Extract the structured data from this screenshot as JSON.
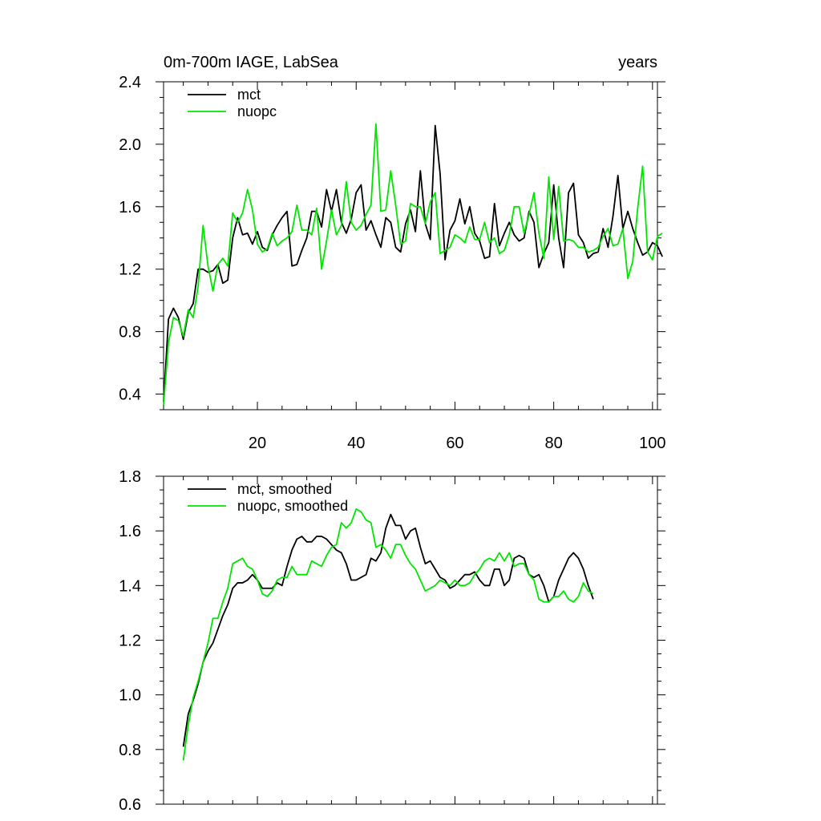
{
  "figure": {
    "title_left": "0m-700m IAGE, LabSea",
    "title_right": "years"
  },
  "chart_data": [
    {
      "type": "line",
      "title": "0m-700m IAGE, LabSea",
      "xlabel": "",
      "ylabel": "",
      "xlim": [
        1,
        101
      ],
      "ylim": [
        0.3,
        2.4
      ],
      "xticks": [
        20,
        40,
        60,
        80,
        100
      ],
      "yticks": [
        0.4,
        0.8,
        1.2,
        1.6,
        2.0,
        2.4
      ],
      "ytick_labels": [
        "0.4",
        "0.8",
        "1.2",
        "1.6",
        "2.0",
        "2.4"
      ],
      "grid": false,
      "legend_position": "top-left",
      "colors": {
        "mct": "#000000",
        "nuopc": "#00e600"
      },
      "series": [
        {
          "name": "mct",
          "x_start": 1,
          "values": [
            0.35,
            0.88,
            0.95,
            0.89,
            0.75,
            0.92,
            0.98,
            1.2,
            1.2,
            1.18,
            1.19,
            1.23,
            1.11,
            1.13,
            1.4,
            1.53,
            1.42,
            1.43,
            1.36,
            1.44,
            1.34,
            1.32,
            1.42,
            1.48,
            1.53,
            1.57,
            1.22,
            1.23,
            1.32,
            1.4,
            1.57,
            1.57,
            1.47,
            1.71,
            1.57,
            1.71,
            1.5,
            1.43,
            1.52,
            1.69,
            1.74,
            1.45,
            1.51,
            1.42,
            1.34,
            1.53,
            1.5,
            1.34,
            1.31,
            1.49,
            1.58,
            1.44,
            1.83,
            1.49,
            1.39,
            2.12,
            1.81,
            1.26,
            1.45,
            1.51,
            1.65,
            1.49,
            1.6,
            1.43,
            1.38,
            1.27,
            1.28,
            1.62,
            1.35,
            1.43,
            1.5,
            1.42,
            1.38,
            1.4,
            1.57,
            1.5,
            1.21,
            1.3,
            1.37,
            1.74,
            1.4,
            1.21,
            1.69,
            1.75,
            1.42,
            1.37,
            1.27,
            1.3,
            1.31,
            1.46,
            1.34,
            1.54,
            1.8,
            1.46,
            1.57,
            1.46,
            1.37,
            1.29,
            1.31,
            1.37,
            1.35,
            1.28
          ]
        },
        {
          "name": "nuopc",
          "x_start": 1,
          "values": [
            0.33,
            0.73,
            0.89,
            0.87,
            0.77,
            0.94,
            0.89,
            1.09,
            1.48,
            1.22,
            1.06,
            1.23,
            1.27,
            1.22,
            1.56,
            1.5,
            1.56,
            1.71,
            1.58,
            1.36,
            1.31,
            1.33,
            1.43,
            1.35,
            1.38,
            1.4,
            1.44,
            1.61,
            1.45,
            1.45,
            1.42,
            1.59,
            1.2,
            1.38,
            1.58,
            1.42,
            1.48,
            1.76,
            1.5,
            1.45,
            1.48,
            1.55,
            1.61,
            2.13,
            1.57,
            1.58,
            1.83,
            1.61,
            1.36,
            1.38,
            1.62,
            1.6,
            1.6,
            1.49,
            1.63,
            1.69,
            1.3,
            1.32,
            1.34,
            1.42,
            1.4,
            1.37,
            1.47,
            1.39,
            1.39,
            1.5,
            1.37,
            1.4,
            1.3,
            1.32,
            1.42,
            1.6,
            1.6,
            1.43,
            1.55,
            1.69,
            1.43,
            1.27,
            1.79,
            1.39,
            1.73,
            1.38,
            1.39,
            1.38,
            1.34,
            1.34,
            1.31,
            1.32,
            1.34,
            1.41,
            1.46,
            1.35,
            1.36,
            1.46,
            1.14,
            1.25,
            1.59,
            1.86,
            1.31,
            1.26,
            1.41,
            1.43
          ]
        }
      ]
    },
    {
      "type": "line",
      "title": "",
      "xlabel": "",
      "ylabel": "",
      "xlim": [
        1,
        101
      ],
      "ylim": [
        0.6,
        1.8
      ],
      "xticks": [
        20,
        40,
        60,
        80,
        100
      ],
      "yticks": [
        0.6,
        0.8,
        1.0,
        1.2,
        1.4,
        1.6,
        1.8
      ],
      "ytick_labels": [
        "0.6",
        "0.8",
        "1.0",
        "1.2",
        "1.4",
        "1.6",
        "1.8"
      ],
      "grid": false,
      "legend_position": "top-left",
      "colors": {
        "mct": "#000000",
        "nuopc": "#00e600"
      },
      "series": [
        {
          "name": "mct, smoothed",
          "x_start": 5,
          "values": [
            0.81,
            0.93,
            0.98,
            1.04,
            1.12,
            1.16,
            1.19,
            1.24,
            1.29,
            1.33,
            1.39,
            1.41,
            1.41,
            1.42,
            1.44,
            1.42,
            1.39,
            1.39,
            1.39,
            1.41,
            1.4,
            1.47,
            1.53,
            1.57,
            1.58,
            1.56,
            1.56,
            1.58,
            1.58,
            1.57,
            1.55,
            1.53,
            1.52,
            1.48,
            1.42,
            1.42,
            1.43,
            1.44,
            1.5,
            1.49,
            1.52,
            1.61,
            1.66,
            1.62,
            1.62,
            1.57,
            1.6,
            1.61,
            1.54,
            1.48,
            1.49,
            1.46,
            1.43,
            1.42,
            1.39,
            1.4,
            1.42,
            1.44,
            1.44,
            1.45,
            1.42,
            1.4,
            1.4,
            1.46,
            1.46,
            1.4,
            1.42,
            1.5,
            1.51,
            1.5,
            1.44,
            1.43,
            1.44,
            1.4,
            1.34,
            1.36,
            1.42,
            1.46,
            1.5,
            1.52,
            1.5,
            1.46,
            1.4,
            1.35
          ]
        },
        {
          "name": "nuopc, smoothed",
          "x_start": 5,
          "values": [
            0.76,
            0.89,
            0.99,
            1.05,
            1.12,
            1.19,
            1.28,
            1.28,
            1.34,
            1.39,
            1.48,
            1.49,
            1.5,
            1.47,
            1.46,
            1.42,
            1.37,
            1.36,
            1.38,
            1.42,
            1.43,
            1.43,
            1.47,
            1.44,
            1.44,
            1.44,
            1.49,
            1.48,
            1.47,
            1.51,
            1.54,
            1.55,
            1.63,
            1.61,
            1.63,
            1.68,
            1.67,
            1.64,
            1.63,
            1.54,
            1.55,
            1.53,
            1.5,
            1.55,
            1.55,
            1.51,
            1.48,
            1.46,
            1.42,
            1.38,
            1.39,
            1.4,
            1.42,
            1.41,
            1.4,
            1.42,
            1.4,
            1.4,
            1.41,
            1.44,
            1.46,
            1.49,
            1.5,
            1.49,
            1.52,
            1.49,
            1.52,
            1.47,
            1.48,
            1.48,
            1.44,
            1.42,
            1.35,
            1.34,
            1.34,
            1.36,
            1.36,
            1.38,
            1.35,
            1.34,
            1.36,
            1.41,
            1.38,
            1.37
          ]
        }
      ]
    }
  ]
}
